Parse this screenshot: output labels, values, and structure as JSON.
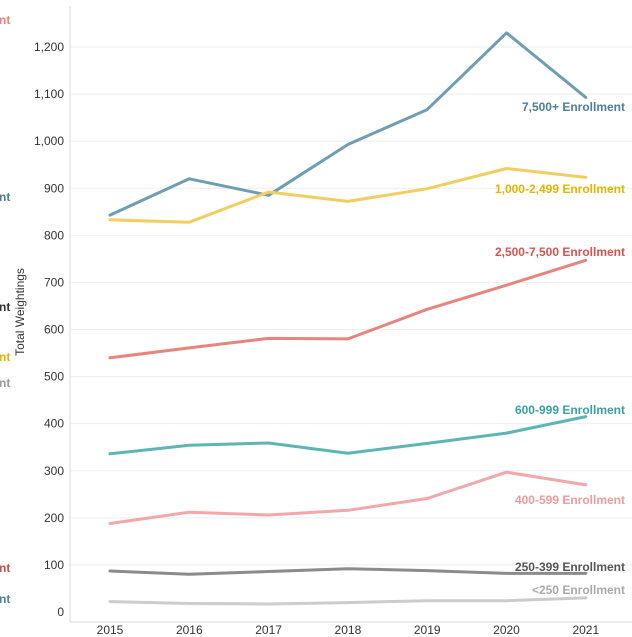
{
  "chart_data": {
    "type": "line",
    "ylabel": "Total Weightings",
    "x": [
      "2015",
      "2016",
      "2017",
      "2018",
      "2019",
      "2020",
      "2021"
    ],
    "ylim": [
      0,
      1300
    ],
    "yticks": [
      "0",
      "100",
      "200",
      "300",
      "400",
      "500",
      "600",
      "700",
      "800",
      "900",
      "1,000",
      "1,100",
      "1,200"
    ],
    "grid": true,
    "series": [
      {
        "name": "7,500+ Enrollment",
        "color": "#6f9db1",
        "values": [
          843,
          920,
          885,
          993,
          1067,
          1230,
          1093
        ]
      },
      {
        "name": "1,000-2,499 Enrollment",
        "color": "#f0cf60",
        "values": [
          833,
          828,
          892,
          872,
          899,
          942,
          923
        ]
      },
      {
        "name": "2,500-7,500 Enrollment",
        "color": "#e8837e",
        "values": [
          540,
          561,
          581,
          580,
          643,
          694,
          747
        ]
      },
      {
        "name": "600-999 Enrollment",
        "color": "#5db5b5",
        "values": [
          336,
          354,
          359,
          337,
          358,
          380,
          415
        ]
      },
      {
        "name": "400-599 Enrollment",
        "color": "#f2a7a9",
        "values": [
          188,
          212,
          206,
          216,
          241,
          297,
          270
        ]
      },
      {
        "name": "250-399 Enrollment",
        "color": "#8b8b8b",
        "values": [
          87,
          80,
          86,
          92,
          88,
          82,
          82
        ]
      },
      {
        "name": "<250 Enrollment",
        "color": "#cccccc",
        "values": [
          22,
          18,
          17,
          20,
          24,
          24,
          30
        ]
      }
    ],
    "left_edge_fragments": [
      {
        "text": "nt",
        "color": "#e8837e"
      },
      {
        "text": "nt",
        "color": "#4e7f94"
      },
      {
        "text": "nt",
        "color": "#333333"
      },
      {
        "text": "nt",
        "color": "#e3b500"
      },
      {
        "text": "nt",
        "color": "#999999"
      },
      {
        "text": "nt",
        "color": "#c0504d"
      },
      {
        "text": "nt",
        "color": "#4e7f94"
      }
    ]
  }
}
